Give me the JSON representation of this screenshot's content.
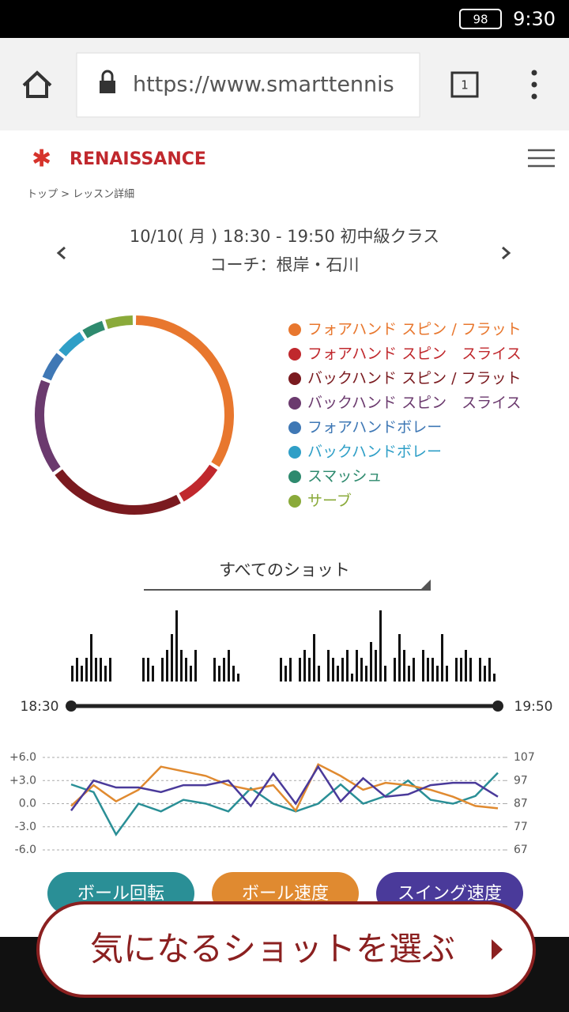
{
  "status_bar": {
    "battery": "98",
    "time": "9:30"
  },
  "browser": {
    "url": "https://www.smarttennis",
    "tabs": "1"
  },
  "header": {
    "brand": "RENAISSANCE",
    "breadcrumb": "トップ > レッスン詳細"
  },
  "lesson": {
    "title": "10/10( 月 ) 18:30 - 19:50 初中級クラス",
    "coach": "コーチ：根岸・石川"
  },
  "filter": "すべてのショット",
  "chart_data": [
    {
      "type": "donut",
      "categories": [
        "フォアハンド スピン / フラット",
        "フォアハンド スピン　スライス",
        "バックハンド スピン / フラット",
        "バックハンド スピン　スライス",
        "フォアハンドボレー",
        "バックハンドボレー",
        "スマッシュ",
        "サーブ"
      ],
      "values": [
        34,
        8,
        23,
        16,
        5,
        5,
        4,
        5
      ],
      "colors": [
        "#e8772e",
        "#c0282d",
        "#7a1a1f",
        "#6b3a6e",
        "#3f78b5",
        "#2f9fc7",
        "#2e8a6e",
        "#8aaa3a"
      ]
    },
    {
      "type": "bar",
      "color": "#111111",
      "start": "18:30",
      "end": "19:50",
      "values": [
        2,
        3,
        2,
        3,
        6,
        3,
        3,
        2,
        3,
        0,
        0,
        0,
        0,
        0,
        0,
        3,
        3,
        2,
        0,
        3,
        4,
        6,
        9,
        4,
        3,
        2,
        4,
        0,
        0,
        0,
        3,
        2,
        3,
        4,
        2,
        1,
        0,
        0,
        0,
        0,
        0,
        0,
        0,
        0,
        3,
        2,
        3,
        0,
        3,
        4,
        3,
        6,
        2,
        0,
        4,
        3,
        2,
        3,
        4,
        1,
        4,
        3,
        2,
        5,
        4,
        9,
        2,
        0,
        3,
        6,
        4,
        2,
        3,
        0,
        4,
        3,
        3,
        2,
        6,
        2,
        0,
        3,
        3,
        4,
        3,
        0,
        3,
        2,
        3,
        1
      ]
    },
    {
      "type": "line",
      "ylim": [
        -6,
        6
      ],
      "yticks": [
        {
          "value": 6,
          "label": "+6.0"
        },
        {
          "value": 3,
          "label": "+3.0"
        },
        {
          "value": 0,
          "label": "0.0"
        },
        {
          "value": -3,
          "label": "-3.0"
        },
        {
          "value": -6,
          "label": "-6.0"
        }
      ],
      "y2lim": [
        67,
        107
      ],
      "y2ticks": [
        107,
        97,
        87,
        77,
        67
      ],
      "grid": true,
      "series": [
        {
          "name": "ボール回転",
          "color": "#2a8f96",
          "values": [
            2.5,
            1.5,
            -4,
            0,
            -1,
            0.5,
            0,
            -1,
            2,
            0,
            -1,
            0,
            2.5,
            0,
            1,
            3,
            0.5,
            0,
            1,
            4
          ]
        },
        {
          "name": "ボール速度",
          "color": "#e08a30",
          "axis": "y2",
          "values": [
            86,
            95,
            88,
            93,
            103,
            101,
            99,
            95,
            93,
            95,
            84,
            104,
            99,
            93,
            96,
            95,
            93,
            90,
            86,
            85
          ]
        },
        {
          "name": "スイング速度",
          "color": "#4a3a9a",
          "axis": "y2",
          "values": [
            84,
            97,
            94,
            94,
            92,
            95,
            95,
            97,
            86,
            100,
            87,
            103,
            88,
            98,
            90,
            91,
            95,
            96,
            96,
            90
          ]
        }
      ]
    }
  ],
  "cta": "気になるショットを選ぶ"
}
